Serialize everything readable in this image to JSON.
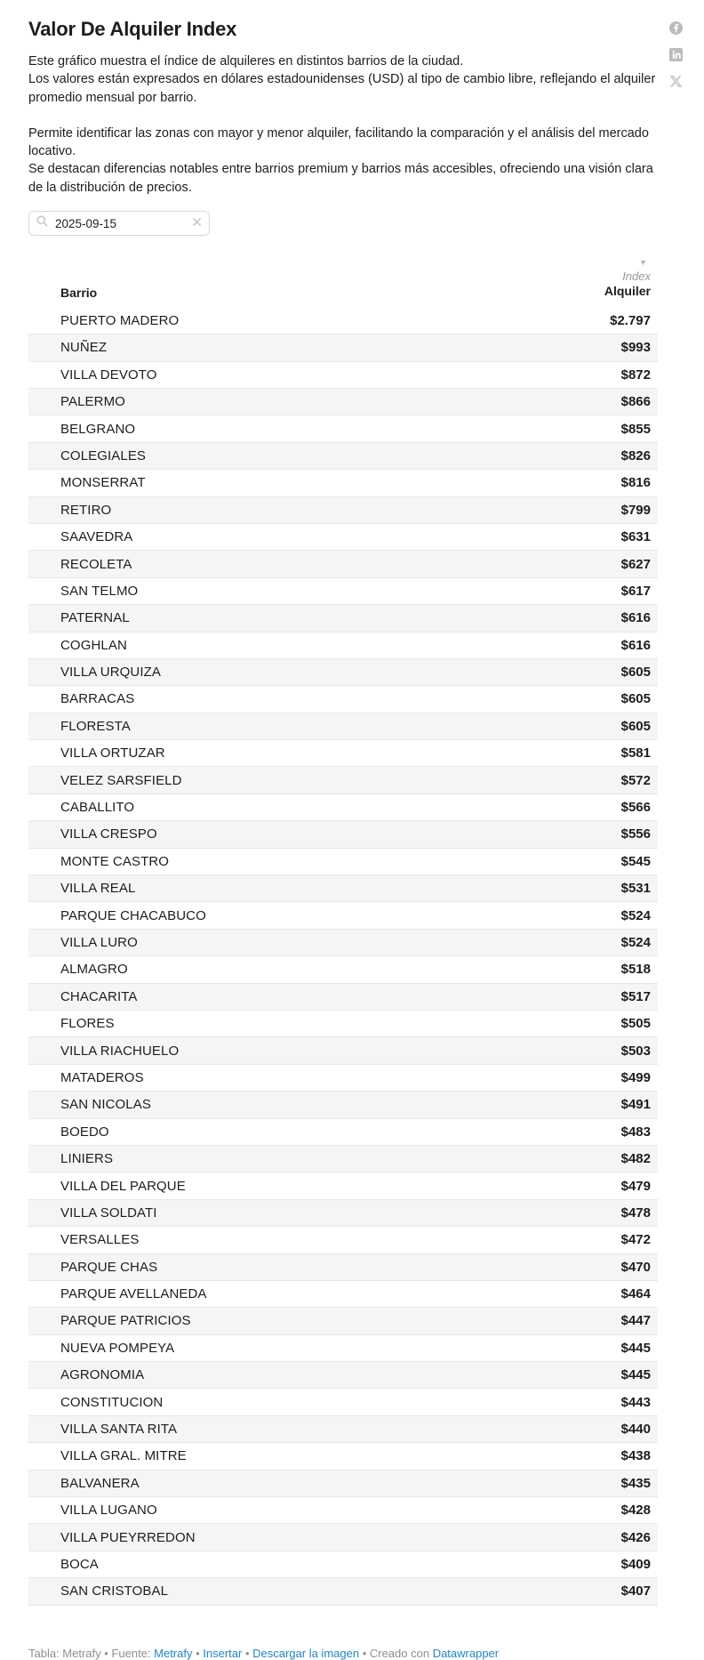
{
  "header": {
    "title": "Valor De Alquiler Index",
    "description_para1": "Este gráfico muestra el índice de alquileres en distintos barrios de la ciudad.\nLos valores están expresados en dólares estadounidenses (USD) al tipo de cambio libre, reflejando el alquiler promedio mensual por barrio.",
    "description_para2": "Permite identificar las zonas con mayor y menor alquiler, facilitando la comparación y el análisis del mercado locativo.\nSe destacan diferencias notables entre barrios premium y barrios más accesibles, ofreciendo una visión clara de la distribución de precios.",
    "share_icons": [
      "facebook-icon",
      "linkedin-icon",
      "x-twitter-icon"
    ]
  },
  "search": {
    "value": "2025-09-15",
    "icons": [
      "search-icon",
      "clear-icon"
    ]
  },
  "table": {
    "header": {
      "barrio_label": "Barrio",
      "sort_indicator": "▼",
      "value_label_line1": "Index",
      "value_label_line2": "Alquiler"
    },
    "rows": [
      {
        "barrio": "PUERTO MADERO",
        "value": "$2.797"
      },
      {
        "barrio": "NUÑEZ",
        "value": "$993"
      },
      {
        "barrio": "VILLA DEVOTO",
        "value": "$872"
      },
      {
        "barrio": "PALERMO",
        "value": "$866"
      },
      {
        "barrio": "BELGRANO",
        "value": "$855"
      },
      {
        "barrio": "COLEGIALES",
        "value": "$826"
      },
      {
        "barrio": "MONSERRAT",
        "value": "$816"
      },
      {
        "barrio": "RETIRO",
        "value": "$799"
      },
      {
        "barrio": "SAAVEDRA",
        "value": "$631"
      },
      {
        "barrio": "RECOLETA",
        "value": "$627"
      },
      {
        "barrio": "SAN TELMO",
        "value": "$617"
      },
      {
        "barrio": "PATERNAL",
        "value": "$616"
      },
      {
        "barrio": "COGHLAN",
        "value": "$616"
      },
      {
        "barrio": "VILLA URQUIZA",
        "value": "$605"
      },
      {
        "barrio": "BARRACAS",
        "value": "$605"
      },
      {
        "barrio": "FLORESTA",
        "value": "$605"
      },
      {
        "barrio": "VILLA ORTUZAR",
        "value": "$581"
      },
      {
        "barrio": "VELEZ SARSFIELD",
        "value": "$572"
      },
      {
        "barrio": "CABALLITO",
        "value": "$566"
      },
      {
        "barrio": "VILLA CRESPO",
        "value": "$556"
      },
      {
        "barrio": "MONTE CASTRO",
        "value": "$545"
      },
      {
        "barrio": "VILLA REAL",
        "value": "$531"
      },
      {
        "barrio": "PARQUE CHACABUCO",
        "value": "$524"
      },
      {
        "barrio": "VILLA LURO",
        "value": "$524"
      },
      {
        "barrio": "ALMAGRO",
        "value": "$518"
      },
      {
        "barrio": "CHACARITA",
        "value": "$517"
      },
      {
        "barrio": "FLORES",
        "value": "$505"
      },
      {
        "barrio": "VILLA RIACHUELO",
        "value": "$503"
      },
      {
        "barrio": "MATADEROS",
        "value": "$499"
      },
      {
        "barrio": "SAN NICOLAS",
        "value": "$491"
      },
      {
        "barrio": "BOEDO",
        "value": "$483"
      },
      {
        "barrio": "LINIERS",
        "value": "$482"
      },
      {
        "barrio": "VILLA DEL PARQUE",
        "value": "$479"
      },
      {
        "barrio": "VILLA SOLDATI",
        "value": "$478"
      },
      {
        "barrio": "VERSALLES",
        "value": "$472"
      },
      {
        "barrio": "PARQUE CHAS",
        "value": "$470"
      },
      {
        "barrio": "PARQUE AVELLANEDA",
        "value": "$464"
      },
      {
        "barrio": "PARQUE PATRICIOS",
        "value": "$447"
      },
      {
        "barrio": "NUEVA POMPEYA",
        "value": "$445"
      },
      {
        "barrio": "AGRONOMIA",
        "value": "$445"
      },
      {
        "barrio": "CONSTITUCION",
        "value": "$443"
      },
      {
        "barrio": "VILLA SANTA RITA",
        "value": "$440"
      },
      {
        "barrio": "VILLA GRAL. MITRE",
        "value": "$438"
      },
      {
        "barrio": "BALVANERA",
        "value": "$435"
      },
      {
        "barrio": "VILLA LUGANO",
        "value": "$428"
      },
      {
        "barrio": "VILLA PUEYRREDON",
        "value": "$426"
      },
      {
        "barrio": "BOCA",
        "value": "$409"
      },
      {
        "barrio": "SAN CRISTOBAL",
        "value": "$407"
      }
    ]
  },
  "chart_data": {
    "type": "table",
    "title": "Valor De Alquiler Index",
    "columns": [
      "Barrio",
      "Alquiler Index (USD)"
    ],
    "rows": [
      [
        "PUERTO MADERO",
        2797
      ],
      [
        "NUÑEZ",
        993
      ],
      [
        "VILLA DEVOTO",
        872
      ],
      [
        "PALERMO",
        866
      ],
      [
        "BELGRANO",
        855
      ],
      [
        "COLEGIALES",
        826
      ],
      [
        "MONSERRAT",
        816
      ],
      [
        "RETIRO",
        799
      ],
      [
        "SAAVEDRA",
        631
      ],
      [
        "RECOLETA",
        627
      ],
      [
        "SAN TELMO",
        617
      ],
      [
        "PATERNAL",
        616
      ],
      [
        "COGHLAN",
        616
      ],
      [
        "VILLA URQUIZA",
        605
      ],
      [
        "BARRACAS",
        605
      ],
      [
        "FLORESTA",
        605
      ],
      [
        "VILLA ORTUZAR",
        581
      ],
      [
        "VELEZ SARSFIELD",
        572
      ],
      [
        "CABALLITO",
        566
      ],
      [
        "VILLA CRESPO",
        556
      ],
      [
        "MONTE CASTRO",
        545
      ],
      [
        "VILLA REAL",
        531
      ],
      [
        "PARQUE CHACABUCO",
        524
      ],
      [
        "VILLA LURO",
        524
      ],
      [
        "ALMAGRO",
        518
      ],
      [
        "CHACARITA",
        517
      ],
      [
        "FLORES",
        505
      ],
      [
        "VILLA RIACHUELO",
        503
      ],
      [
        "MATADEROS",
        499
      ],
      [
        "SAN NICOLAS",
        491
      ],
      [
        "BOEDO",
        483
      ],
      [
        "LINIERS",
        482
      ],
      [
        "VILLA DEL PARQUE",
        479
      ],
      [
        "VILLA SOLDATI",
        478
      ],
      [
        "VERSALLES",
        472
      ],
      [
        "PARQUE CHAS",
        470
      ],
      [
        "PARQUE AVELLANEDA",
        464
      ],
      [
        "PARQUE PATRICIOS",
        447
      ],
      [
        "NUEVA POMPEYA",
        445
      ],
      [
        "AGRONOMIA",
        445
      ],
      [
        "CONSTITUCION",
        443
      ],
      [
        "VILLA SANTA RITA",
        440
      ],
      [
        "VILLA GRAL. MITRE",
        438
      ],
      [
        "BALVANERA",
        435
      ],
      [
        "VILLA LUGANO",
        428
      ],
      [
        "VILLA PUEYRREDON",
        426
      ],
      [
        "BOCA",
        409
      ],
      [
        "SAN CRISTOBAL",
        407
      ]
    ],
    "sort": {
      "column": "Alquiler Index (USD)",
      "direction": "descending"
    }
  },
  "footer": {
    "parts": [
      {
        "text": "Tabla: Metrafy",
        "link": false
      },
      {
        "text": " • ",
        "link": false
      },
      {
        "text": "Fuente: ",
        "link": false
      },
      {
        "text": "Metrafy",
        "link": true
      },
      {
        "text": " • ",
        "link": false
      },
      {
        "text": "Insertar",
        "link": true
      },
      {
        "text": "  • ",
        "link": false
      },
      {
        "text": "Descargar la imagen",
        "link": true
      },
      {
        "text": " • ",
        "link": false
      },
      {
        "text": "Creado con ",
        "link": false
      },
      {
        "text": "Datawrapper",
        "link": true
      }
    ]
  },
  "colors": {
    "text": "#1d1d1d",
    "muted_text": "#8f8f8f",
    "index_label": "#999999",
    "link_blue": "#1f87c9",
    "row_stripe": "#f5f5f5",
    "row_border": "#e7e7e7",
    "icon_gray": "#bcbcbc",
    "search_border": "#d9d9d9"
  }
}
